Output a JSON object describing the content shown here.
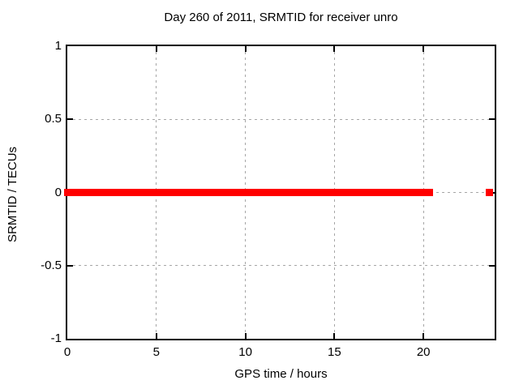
{
  "chart_data": {
    "type": "scatter",
    "title": "Day 260 of 2011, SRMTID for receiver unro",
    "xlabel": "GPS time / hours",
    "ylabel": "SRMTID / TECUs",
    "xlim": [
      0,
      24
    ],
    "ylim": [
      -1,
      1
    ],
    "x_ticks": [
      0,
      5,
      10,
      15,
      20
    ],
    "y_ticks": [
      1,
      0.5,
      0,
      -0.5,
      -1
    ],
    "grid": true,
    "legend": "none",
    "marker": "filled-square",
    "marker_size_px": 9,
    "series": [
      {
        "name": "SRMTID",
        "color": "#ff0000",
        "bands": [
          {
            "x_start": 0.0,
            "x_end": 20.35,
            "y": 0.0
          },
          {
            "x_start": 23.72,
            "x_end": 23.72,
            "y": 0.0
          }
        ],
        "description": "Dense run of points at y=0 from 0 h to about 20.4 h, plus one isolated point near 23.7 h"
      }
    ],
    "colors": {
      "background": "#ffffff",
      "border": "#000000",
      "grid": "#a6a6a6",
      "text": "#000000",
      "data": "#ff0000"
    }
  }
}
